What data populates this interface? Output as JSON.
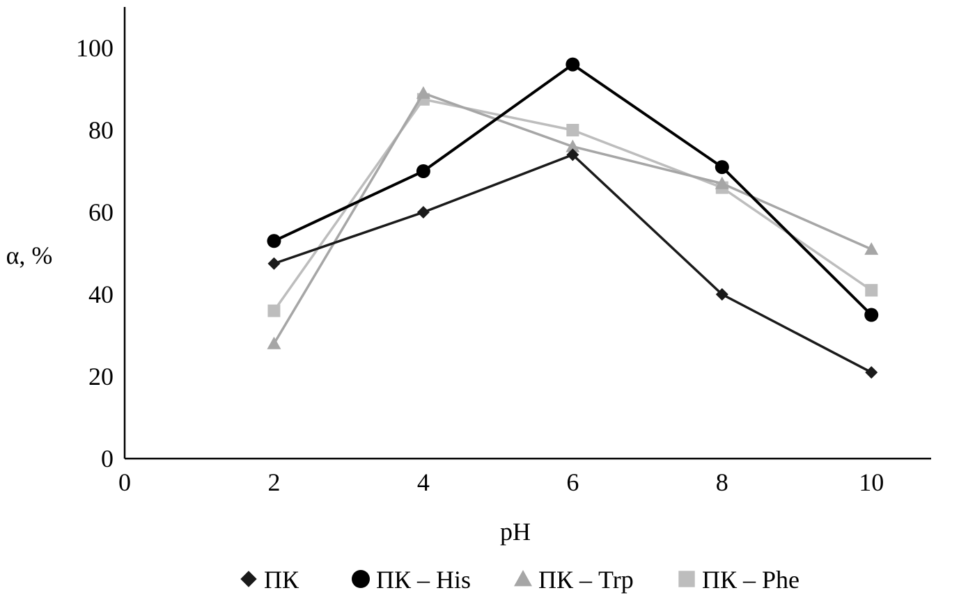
{
  "chart_data": {
    "type": "line",
    "title": "",
    "xlabel": "pH",
    "ylabel": "α,  %",
    "xlim": [
      0,
      10.8
    ],
    "ylim": [
      0,
      110
    ],
    "x_ticks": [
      0,
      2,
      4,
      6,
      8,
      10
    ],
    "y_ticks": [
      0,
      20,
      40,
      60,
      80,
      100
    ],
    "grid": false,
    "legend_position": "bottom",
    "series": [
      {
        "name": "ПК",
        "marker": "diamond",
        "color": "#1a1a1a",
        "x": [
          2,
          4,
          6,
          8,
          10
        ],
        "y": [
          47.5,
          60,
          74,
          40,
          21
        ]
      },
      {
        "name": "ПК – His",
        "marker": "circle",
        "color": "#000000",
        "x": [
          2,
          4,
          6,
          8,
          10
        ],
        "y": [
          53,
          70,
          96,
          71,
          35
        ]
      },
      {
        "name": "ПК – Trp",
        "marker": "triangle",
        "color": "#a6a6a6",
        "x": [
          2,
          4,
          6,
          8,
          10
        ],
        "y": [
          28,
          89,
          76,
          67,
          51
        ]
      },
      {
        "name": "ПК – Phe",
        "marker": "square",
        "color": "#bdbdbd",
        "x": [
          2,
          4,
          6,
          8,
          10
        ],
        "y": [
          36,
          87.5,
          80,
          66,
          41
        ]
      }
    ]
  }
}
